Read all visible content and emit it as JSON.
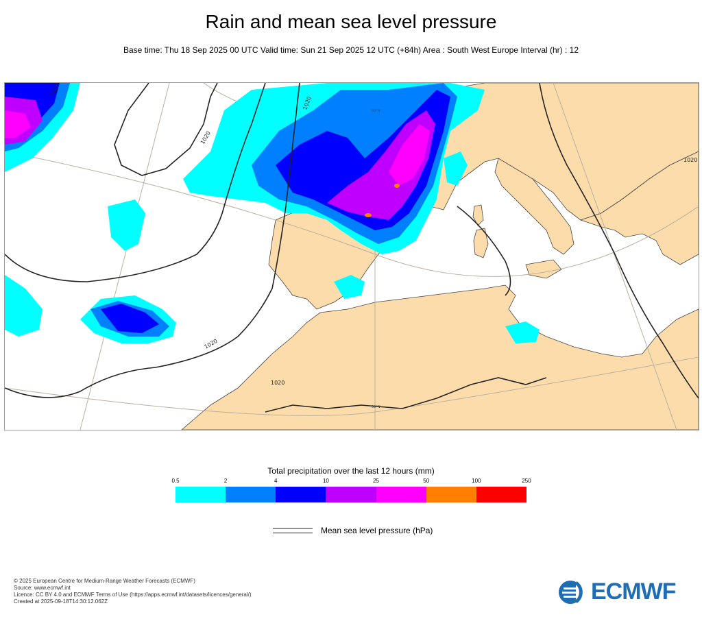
{
  "title": "Rain and mean sea level pressure",
  "subtitle": "Base time: Thu 18 Sep 2025 00 UTC Valid time: Sun 21 Sep 2025 12 UTC (+84h) Area : South West Europe Interval (hr) : 12",
  "map": {
    "isobar_labels": [
      "1020",
      "1020",
      "1020",
      "1020",
      "1020",
      "1020"
    ],
    "latitude_labels": [
      "50°N",
      "30°N"
    ]
  },
  "legend": {
    "title": "Total precipitation over the last 12 hours (mm)",
    "ticks": [
      "0.5",
      "2",
      "4",
      "10",
      "25",
      "50",
      "100",
      "250"
    ],
    "colors": [
      "#00ffff",
      "#0080ff",
      "#0000ff",
      "#c000ff",
      "#ff00ff",
      "#ff8000",
      "#ff0000"
    ]
  },
  "mslp_legend": {
    "label": "Mean sea level pressure (hPa)"
  },
  "footer": {
    "line1": "© 2025 European Centre for Medium-Range Weather Forecasts (ECMWF)",
    "line2": "Source: www.ecmwf.int",
    "line3": "Licence: CC BY 4.0 and ECMWF Terms of Use (https://apps.ecmwf.int/datasets/licences/general/)",
    "line4": "Created at 2025-09-18T14:30:12.062Z"
  },
  "logo": {
    "text": "ECMWF",
    "color": "#1f6db3"
  }
}
